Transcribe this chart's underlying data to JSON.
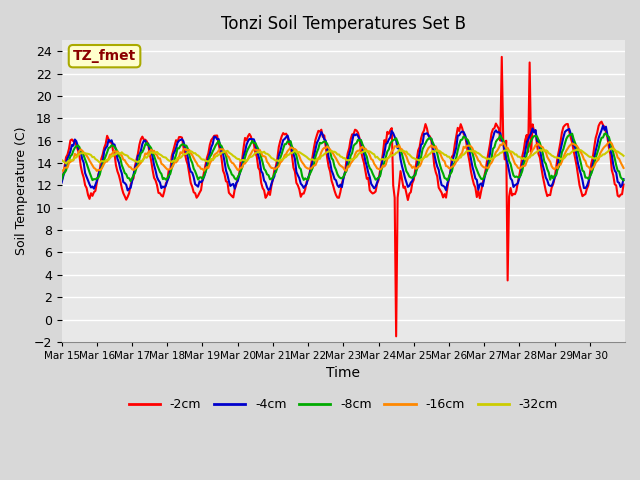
{
  "title": "Tonzi Soil Temperatures Set B",
  "xlabel": "Time",
  "ylabel": "Soil Temperature (C)",
  "ylim": [
    -2,
    25
  ],
  "yticks": [
    -2,
    0,
    2,
    4,
    6,
    8,
    10,
    12,
    14,
    16,
    18,
    20,
    22,
    24
  ],
  "x_labels": [
    "Mar 15",
    "Mar 16",
    "Mar 17",
    "Mar 18",
    "Mar 19",
    "Mar 20",
    "Mar 21",
    "Mar 22",
    "Mar 23",
    "Mar 24",
    "Mar 25",
    "Mar 26",
    "Mar 27",
    "Mar 28",
    "Mar 29",
    "Mar 30"
  ],
  "annotation_text": "TZ_fmet",
  "annotation_color": "#8b0000",
  "annotation_bg": "#ffffcc",
  "fig_bg": "#d8d8d8",
  "plot_bg": "#e8e8e8",
  "grid_color": "#ffffff",
  "series": {
    "-2cm": {
      "color": "#ff0000",
      "lw": 1.5
    },
    "-4cm": {
      "color": "#0000cc",
      "lw": 1.5
    },
    "-8cm": {
      "color": "#00aa00",
      "lw": 1.5
    },
    "-16cm": {
      "color": "#ff8800",
      "lw": 1.5
    },
    "-32cm": {
      "color": "#cccc00",
      "lw": 1.5
    }
  },
  "legend_order": [
    "-2cm",
    "-4cm",
    "-8cm",
    "-16cm",
    "-32cm"
  ]
}
